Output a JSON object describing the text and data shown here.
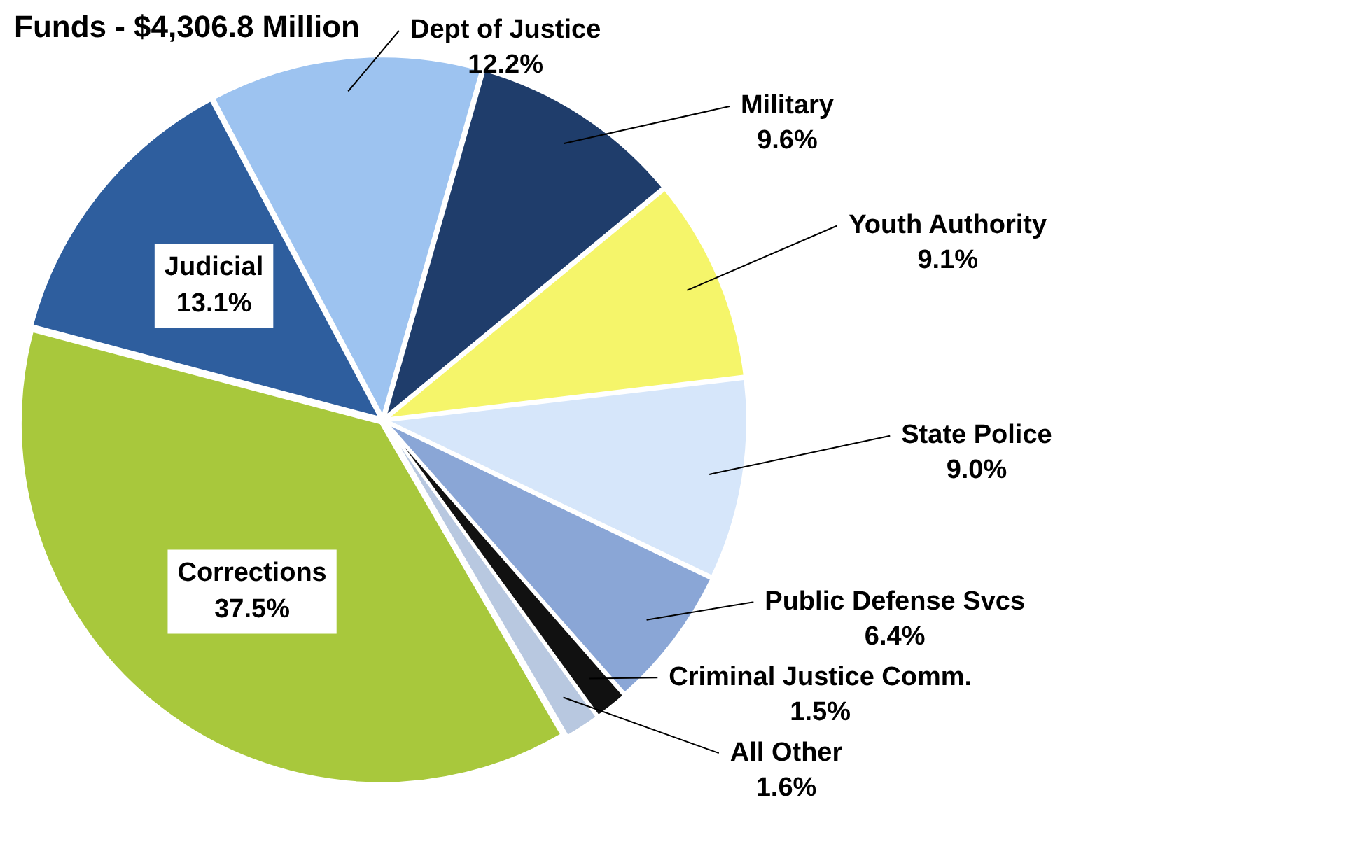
{
  "chart_data": {
    "type": "pie",
    "title": "Funds - $4,306.8 Million",
    "categories": [
      "Dept of Justice",
      "Military",
      "Youth Authority",
      "State Police",
      "Public Defense Svcs",
      "Criminal Justice Comm.",
      "All Other",
      "Corrections",
      "Judicial"
    ],
    "values": [
      12.2,
      9.6,
      9.1,
      9.0,
      6.4,
      1.5,
      1.6,
      37.5,
      13.1
    ],
    "colors": [
      "#9dc3f0",
      "#1f3d6b",
      "#f5f56a",
      "#d6e6fa",
      "#8aa6d6",
      "#111111",
      "#b8c8e0",
      "#a8c83c",
      "#2e5e9e"
    ],
    "value_labels": [
      "12.2%",
      "9.6%",
      "9.1%",
      "9.0%",
      "6.4%",
      "1.5%",
      "1.6%",
      "37.5%",
      "13.1%"
    ],
    "legend": false
  }
}
